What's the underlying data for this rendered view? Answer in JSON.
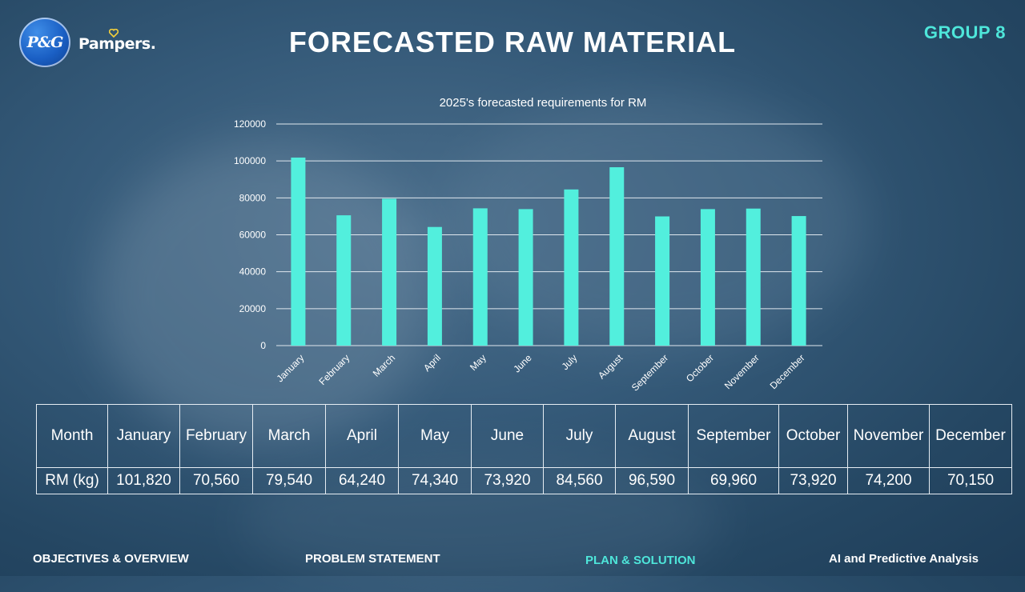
{
  "branding": {
    "pg_logo_text": "P&G",
    "pampers_logo_text": "Pampers."
  },
  "slide": {
    "title": "FORECASTED RAW MATERIAL",
    "group_label": "GROUP 8"
  },
  "chart_data": {
    "type": "bar",
    "title": "2025's forecasted requirements for RM",
    "xlabel": "",
    "ylabel": "",
    "categories": [
      "January",
      "February",
      "March",
      "April",
      "May",
      "June",
      "July",
      "August",
      "September",
      "October",
      "November",
      "December"
    ],
    "values": [
      101820,
      70560,
      79540,
      64240,
      74340,
      73920,
      84560,
      96590,
      69960,
      73920,
      74200,
      70150
    ],
    "ylim": [
      0,
      120000
    ],
    "yticks": [
      "0",
      "20000",
      "40000",
      "60000",
      "80000",
      "100000",
      "120000"
    ],
    "grid": true,
    "legend": "none",
    "bar_color": "#52efdd"
  },
  "table": {
    "row_headers": [
      "Month",
      "RM (kg)"
    ],
    "months": [
      "January",
      "February",
      "March",
      "April",
      "May",
      "June",
      "July",
      "August",
      "September",
      "October",
      "November",
      "December"
    ],
    "values": [
      "101,820",
      "70,560",
      "79,540",
      "64,240",
      "74,340",
      "73,920",
      "84,560",
      "96,590",
      "69,960",
      "73,920",
      "74,200",
      "70,150"
    ]
  },
  "nav": {
    "items": [
      {
        "label": "OBJECTIVES & OVERVIEW",
        "active": false
      },
      {
        "label": "PROBLEM STATEMENT",
        "active": false
      },
      {
        "label": "PLAN & SOLUTION",
        "active": true
      },
      {
        "label": "AI and Predictive Analysis",
        "active": false
      }
    ]
  },
  "colors": {
    "accent": "#4ee6da",
    "background": "#2d5272"
  }
}
